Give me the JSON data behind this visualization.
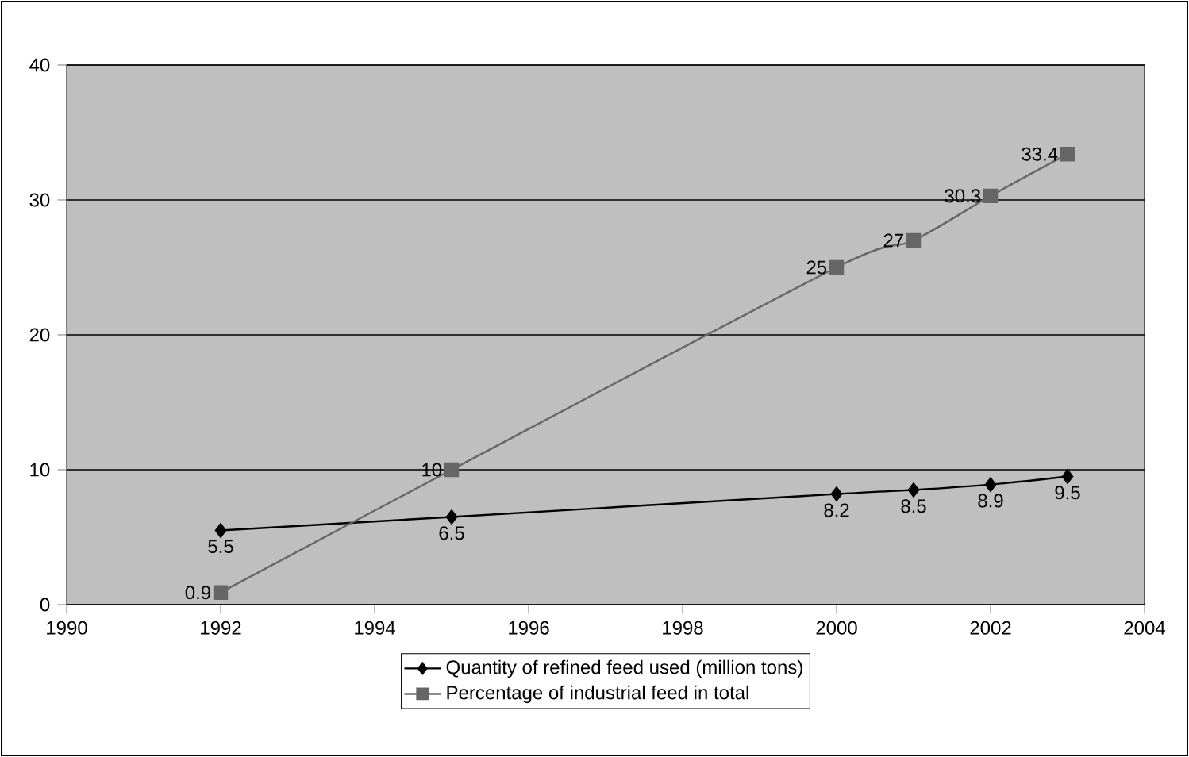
{
  "chart_data": {
    "type": "line",
    "xlim": [
      1990,
      2004
    ],
    "xticks": [
      1990,
      1992,
      1994,
      1996,
      1998,
      2000,
      2002,
      2004
    ],
    "ylim": [
      0,
      40
    ],
    "yticks": [
      0,
      10,
      20,
      30,
      40
    ],
    "grid": "y",
    "legend": "bottom",
    "data_labels": true,
    "x": [
      1992,
      1995,
      2000,
      2001,
      2002,
      2003
    ],
    "series": [
      {
        "name": "Quantity of refined feed used (million tons)",
        "color": "#000000",
        "marker": "diamond",
        "values": [
          5.5,
          6.5,
          8.2,
          8.5,
          8.9,
          9.5
        ]
      },
      {
        "name": "Percentage of industrial feed in total",
        "color": "#666666",
        "marker": "square",
        "values": [
          0.9,
          10,
          25,
          27,
          30.3,
          33.4
        ]
      }
    ]
  }
}
